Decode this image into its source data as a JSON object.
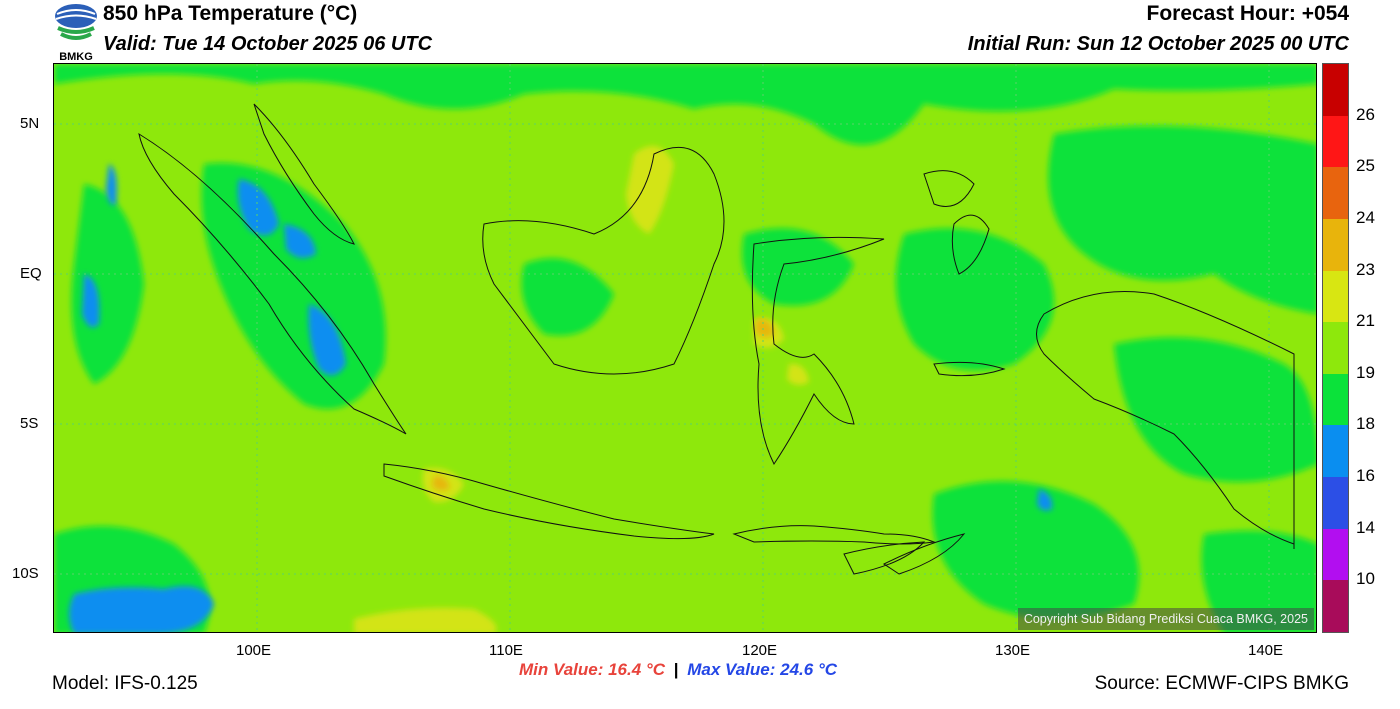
{
  "header": {
    "logo_text": "BMKG",
    "title": "850 hPa Temperature (°C)",
    "valid": "Valid: Tue 14 October 2025 06 UTC",
    "forecast_hour": "Forecast Hour: +054",
    "initial_run": "Initial Run: Sun 12 October 2025 00 UTC"
  },
  "map": {
    "lat_ticks": [
      "5N",
      "EQ",
      "5S",
      "10S"
    ],
    "lon_ticks": [
      "100E",
      "110E",
      "120E",
      "130E",
      "140E"
    ],
    "copyright": "Copyright Sub Bidang Prediksi Cuaca BMKG, 2025",
    "colors": {
      "dominant": "#8ee80c",
      "cool": "#0be23a",
      "cooler": "#0a8ef0",
      "warm": "#d3e414",
      "warmer": "#e6b80e"
    }
  },
  "colorbar": {
    "labels": [
      "26",
      "25",
      "24",
      "23",
      "21",
      "19",
      "18",
      "16",
      "14",
      "10"
    ],
    "colors": [
      "#c80000",
      "#ff1616",
      "#e8640e",
      "#e8b40c",
      "#d8e612",
      "#8ee80c",
      "#0be23a",
      "#0a8ef0",
      "#2c4fe6",
      "#b20ef0",
      "#a80c5a"
    ]
  },
  "footer": {
    "model": "Model: IFS-0.125",
    "min_value": "Min Value: 16.4 °C",
    "separator": "|",
    "max_value": "Max Value: 24.6 °C",
    "source": "Source: ECMWF-CIPS BMKG"
  }
}
